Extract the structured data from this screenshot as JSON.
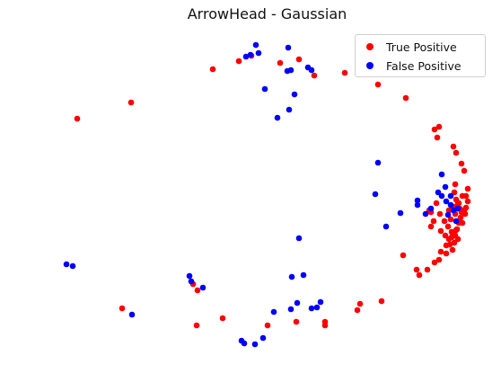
{
  "chart_data": {
    "type": "scatter",
    "title": "ArrowHead - Gaussian",
    "xlabel": "",
    "ylabel": "",
    "axes_visible": false,
    "grid": false,
    "legend_position": "top-right",
    "xlim": [
      0,
      580
    ],
    "ylim": [
      0,
      420
    ],
    "series": [
      {
        "name": "True Positive",
        "color": "#ff0000",
        "points": [
          [
            86,
            132
          ],
          [
            146,
            114
          ],
          [
            237,
            77
          ],
          [
            266,
            68
          ],
          [
            280,
            62
          ],
          [
            312,
            70
          ],
          [
            333,
            66
          ],
          [
            350,
            84
          ],
          [
            384,
            81
          ],
          [
            421,
            94
          ],
          [
            452,
            109
          ],
          [
            489,
            141
          ],
          [
            484,
            144
          ],
          [
            487,
            153
          ],
          [
            505,
            163
          ],
          [
            508,
            170
          ],
          [
            514,
            182
          ],
          [
            517,
            190
          ],
          [
            507,
            205
          ],
          [
            521,
            210
          ],
          [
            515,
            218
          ],
          [
            521,
            224
          ],
          [
            519,
            231
          ],
          [
            518,
            238
          ],
          [
            512,
            246
          ],
          [
            508,
            256
          ],
          [
            503,
            264
          ],
          [
            497,
            273
          ],
          [
            491,
            280
          ],
          [
            489,
            289
          ],
          [
            484,
            292
          ],
          [
            476,
            300
          ],
          [
            464,
            300
          ],
          [
            467,
            306
          ],
          [
            449,
            284
          ],
          [
            478,
            234
          ],
          [
            483,
            246
          ],
          [
            490,
            238
          ],
          [
            495,
            246
          ],
          [
            480,
            252
          ],
          [
            491,
            257
          ],
          [
            499,
            252
          ],
          [
            500,
            234
          ],
          [
            502,
            244
          ],
          [
            486,
            226
          ],
          [
            480,
            236
          ],
          [
            506,
            214
          ],
          [
            511,
            226
          ],
          [
            512,
            232
          ],
          [
            513,
            242
          ],
          [
            511,
            248
          ],
          [
            507,
            262
          ],
          [
            503,
            258
          ],
          [
            509,
            255
          ],
          [
            510,
            266
          ],
          [
            506,
            270
          ],
          [
            500,
            266
          ],
          [
            496,
            262
          ],
          [
            501,
            272
          ],
          [
            504,
            278
          ],
          [
            497,
            282
          ],
          [
            505,
            230
          ],
          [
            517,
            234
          ],
          [
            508,
            222
          ],
          [
            509,
            230
          ],
          [
            519,
            218
          ],
          [
            514,
            236
          ],
          [
            510,
            226
          ],
          [
            515,
            248
          ],
          [
            507,
            238
          ],
          [
            215,
            316
          ],
          [
            220,
            323
          ],
          [
            136,
            343
          ],
          [
            248,
            354
          ],
          [
            219,
            362
          ],
          [
            298,
            362
          ],
          [
            330,
            358
          ],
          [
            362,
            358
          ],
          [
            362,
            362
          ],
          [
            398,
            345
          ],
          [
            401,
            338
          ],
          [
            425,
            335
          ]
        ]
      },
      {
        "name": "False Positive",
        "color": "#0000ff",
        "points": [
          [
            285,
            50
          ],
          [
            321,
            53
          ],
          [
            274,
            63
          ],
          [
            279,
            61
          ],
          [
            288,
            59
          ],
          [
            343,
            75
          ],
          [
            320,
            79
          ],
          [
            324,
            78
          ],
          [
            347,
            78
          ],
          [
            295,
            99
          ],
          [
            328,
            105
          ],
          [
            322,
            122
          ],
          [
            309,
            131
          ],
          [
            421,
            181
          ],
          [
            492,
            194
          ],
          [
            418,
            216
          ],
          [
            446,
            237
          ],
          [
            430,
            252
          ],
          [
            465,
            223
          ],
          [
            465,
            228
          ],
          [
            474,
            238
          ],
          [
            480,
            232
          ],
          [
            488,
            214
          ],
          [
            496,
            208
          ],
          [
            492,
            218
          ],
          [
            502,
            218
          ],
          [
            497,
            224
          ],
          [
            510,
            232
          ],
          [
            502,
            228
          ],
          [
            499,
            239
          ],
          [
            508,
            246
          ],
          [
            505,
            234
          ],
          [
            333,
            265
          ],
          [
            74,
            294
          ],
          [
            81,
            296
          ],
          [
            211,
            307
          ],
          [
            213,
            313
          ],
          [
            226,
            320
          ],
          [
            338,
            306
          ],
          [
            325,
            308
          ],
          [
            331,
            337
          ],
          [
            147,
            350
          ],
          [
            305,
            347
          ],
          [
            324,
            344
          ],
          [
            347,
            343
          ],
          [
            353,
            342
          ],
          [
            357,
            336
          ],
          [
            269,
            379
          ],
          [
            272,
            382
          ],
          [
            284,
            383
          ],
          [
            293,
            376
          ]
        ]
      }
    ]
  }
}
